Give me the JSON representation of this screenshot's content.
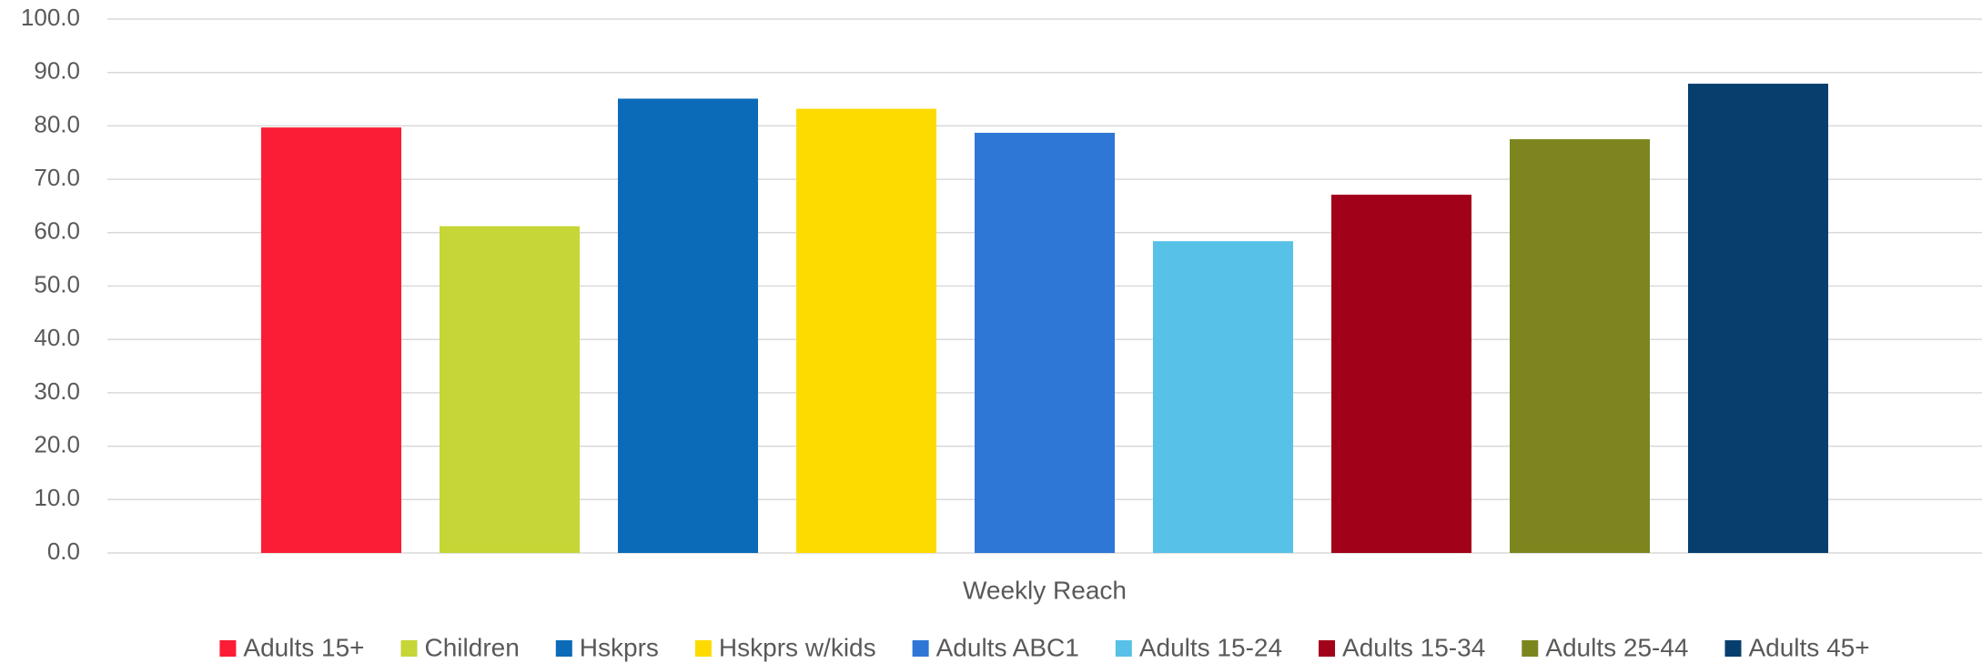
{
  "chart_data": {
    "type": "bar",
    "categories": [
      "Weekly Reach"
    ],
    "series": [
      {
        "name": "Adults 15+",
        "color": "#fb1c35",
        "values": [
          79.7
        ]
      },
      {
        "name": "Children",
        "color": "#c5d636",
        "values": [
          61.2
        ]
      },
      {
        "name": "Hskprs",
        "color": "#0b6bb8",
        "values": [
          85.1
        ]
      },
      {
        "name": "Hskprs w/kids",
        "color": "#fedb00",
        "values": [
          83.2
        ]
      },
      {
        "name": "Adults ABC1",
        "color": "#2e77d6",
        "values": [
          78.7
        ]
      },
      {
        "name": "Adults 15-24",
        "color": "#57c1e7",
        "values": [
          58.4
        ]
      },
      {
        "name": "Adults 15-34",
        "color": "#a20219",
        "values": [
          67.1
        ]
      },
      {
        "name": "Adults 25-44",
        "color": "#7d861e",
        "values": [
          77.5
        ]
      },
      {
        "name": "Adults 45+",
        "color": "#063f6e",
        "values": [
          87.9
        ]
      }
    ],
    "ylim": [
      0,
      100
    ],
    "yticks": [
      {
        "value": 0,
        "label": "0.0"
      },
      {
        "value": 10,
        "label": "10.0"
      },
      {
        "value": 20,
        "label": "20.0"
      },
      {
        "value": 30,
        "label": "30.0"
      },
      {
        "value": 40,
        "label": "40.0"
      },
      {
        "value": 50,
        "label": "50.0"
      },
      {
        "value": 60,
        "label": "60.0"
      },
      {
        "value": 70,
        "label": "70.0"
      },
      {
        "value": 80,
        "label": "80.0"
      },
      {
        "value": 90,
        "label": "90.0"
      },
      {
        "value": 100,
        "label": "100.0"
      }
    ],
    "grid": true,
    "legend": "bottom"
  }
}
